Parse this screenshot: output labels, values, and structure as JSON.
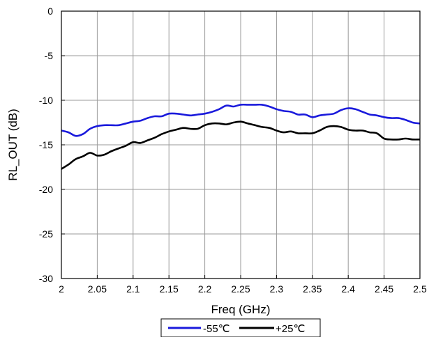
{
  "chart_data": {
    "type": "line",
    "xlabel": "Freq (GHz)",
    "ylabel": "RL_OUT (dB)",
    "xlim": [
      2,
      2.5
    ],
    "ylim": [
      -30,
      0
    ],
    "x_ticks": [
      "2",
      "2.05",
      "2.1",
      "2.15",
      "2.2",
      "2.25",
      "2.3",
      "2.35",
      "2.4",
      "2.45",
      "2.5"
    ],
    "y_ticks": [
      "0",
      "-5",
      "-10",
      "-15",
      "-20",
      "-25",
      "-30"
    ],
    "grid": true,
    "legend_position": "bottom",
    "series": [
      {
        "name": "-55℃",
        "color": "#1a1adc",
        "x": [
          2.0,
          2.01,
          2.02,
          2.03,
          2.04,
          2.05,
          2.06,
          2.07,
          2.08,
          2.09,
          2.1,
          2.11,
          2.12,
          2.13,
          2.14,
          2.15,
          2.16,
          2.17,
          2.18,
          2.19,
          2.2,
          2.21,
          2.22,
          2.23,
          2.24,
          2.25,
          2.26,
          2.27,
          2.28,
          2.29,
          2.3,
          2.31,
          2.32,
          2.33,
          2.34,
          2.35,
          2.36,
          2.37,
          2.38,
          2.39,
          2.4,
          2.41,
          2.42,
          2.43,
          2.44,
          2.45,
          2.46,
          2.47,
          2.48,
          2.49,
          2.5
        ],
        "y": [
          -13.4,
          -13.6,
          -14.0,
          -13.8,
          -13.2,
          -12.9,
          -12.8,
          -12.8,
          -12.8,
          -12.6,
          -12.4,
          -12.3,
          -12.0,
          -11.8,
          -11.8,
          -11.5,
          -11.5,
          -11.6,
          -11.7,
          -11.6,
          -11.5,
          -11.3,
          -11.0,
          -10.6,
          -10.7,
          -10.5,
          -10.5,
          -10.5,
          -10.5,
          -10.7,
          -11.0,
          -11.2,
          -11.3,
          -11.6,
          -11.6,
          -11.9,
          -11.7,
          -11.6,
          -11.5,
          -11.1,
          -10.9,
          -11.0,
          -11.3,
          -11.6,
          -11.7,
          -11.9,
          -12.0,
          -12.0,
          -12.2,
          -12.5,
          -12.6
        ]
      },
      {
        "name": "+25℃",
        "color": "#000000",
        "x": [
          2.0,
          2.01,
          2.02,
          2.03,
          2.04,
          2.05,
          2.06,
          2.07,
          2.08,
          2.09,
          2.1,
          2.11,
          2.12,
          2.13,
          2.14,
          2.15,
          2.16,
          2.17,
          2.18,
          2.19,
          2.2,
          2.21,
          2.22,
          2.23,
          2.24,
          2.25,
          2.26,
          2.27,
          2.28,
          2.29,
          2.3,
          2.31,
          2.32,
          2.33,
          2.34,
          2.35,
          2.36,
          2.37,
          2.38,
          2.39,
          2.4,
          2.41,
          2.42,
          2.43,
          2.44,
          2.45,
          2.46,
          2.47,
          2.48,
          2.49,
          2.5
        ],
        "y": [
          -17.7,
          -17.2,
          -16.6,
          -16.3,
          -15.9,
          -16.2,
          -16.1,
          -15.7,
          -15.4,
          -15.1,
          -14.7,
          -14.8,
          -14.5,
          -14.2,
          -13.8,
          -13.5,
          -13.3,
          -13.1,
          -13.2,
          -13.2,
          -12.8,
          -12.6,
          -12.6,
          -12.7,
          -12.5,
          -12.4,
          -12.6,
          -12.8,
          -13.0,
          -13.1,
          -13.4,
          -13.6,
          -13.5,
          -13.7,
          -13.7,
          -13.7,
          -13.4,
          -13.0,
          -12.9,
          -13.0,
          -13.3,
          -13.4,
          -13.4,
          -13.6,
          -13.7,
          -14.3,
          -14.4,
          -14.4,
          -14.3,
          -14.4,
          -14.4
        ]
      }
    ]
  }
}
